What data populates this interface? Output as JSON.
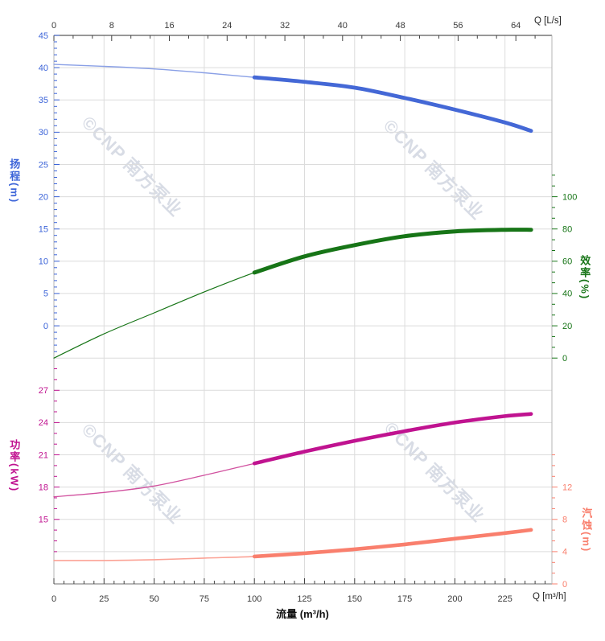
{
  "chart_data": {
    "type": "line",
    "title": "",
    "xlabel": "流量 (m³/h)",
    "watermark": "©CNP 南方泵业",
    "bold_from_flow": 100,
    "flow_max_m3h": 248,
    "axes": {
      "flow_top": {
        "unit_label": "Q [L/s]",
        "ticks": [
          0,
          8,
          16,
          24,
          32,
          40,
          48,
          56,
          64
        ],
        "m3h_per_unit": 3.6,
        "color": "#3a3a3a"
      },
      "flow_bottom": {
        "unit_label": "Q [m³/h]",
        "ticks": [
          0,
          25,
          50,
          75,
          100,
          125,
          150,
          175,
          200,
          225
        ],
        "minor_step": 5,
        "color": "#3a3a3a"
      },
      "head": {
        "title": "扬程(m)",
        "ticks": [
          45,
          40,
          35,
          30,
          25,
          20,
          15,
          10,
          5,
          0
        ],
        "range": [
          45,
          0
        ],
        "color": "#3c64d8"
      },
      "efficiency": {
        "title": "效率(%)",
        "ticks": [
          100,
          80,
          60,
          40,
          20,
          0
        ],
        "range": [
          100,
          0
        ],
        "color": "#177517"
      },
      "power": {
        "title": "功率(kW)",
        "ticks": [
          27,
          24,
          21,
          18,
          15
        ],
        "range": [
          27,
          15
        ],
        "color": "#c01390"
      },
      "npsh": {
        "title": "汽蚀(m)",
        "ticks": [
          12,
          8,
          4,
          0
        ],
        "range": [
          12,
          0
        ],
        "color": "#f97f6d"
      }
    },
    "series": [
      {
        "name": "扬程",
        "axis": "head",
        "color": "#4468d6",
        "thin_color": "#8aa0e6",
        "x": [
          0,
          25,
          50,
          75,
          100,
          125,
          150,
          175,
          200,
          225,
          238
        ],
        "y": [
          40.5,
          40.2,
          39.8,
          39.2,
          38.5,
          37.8,
          36.9,
          35.3,
          33.5,
          31.5,
          30.2
        ]
      },
      {
        "name": "效率",
        "axis": "efficiency",
        "color": "#177517",
        "thin_color": "#177517",
        "x": [
          0,
          25,
          50,
          75,
          100,
          125,
          150,
          175,
          200,
          225,
          238
        ],
        "y": [
          0,
          15,
          28,
          41,
          53,
          63,
          70,
          75.5,
          78.5,
          79.5,
          79.5
        ]
      },
      {
        "name": "功率",
        "axis": "power",
        "color": "#c01390",
        "thin_color": "#d1519f",
        "x": [
          0,
          25,
          50,
          75,
          100,
          125,
          150,
          175,
          200,
          225,
          238
        ],
        "y": [
          17.1,
          17.5,
          18.1,
          19.1,
          20.2,
          21.3,
          22.3,
          23.2,
          24.0,
          24.6,
          24.8
        ]
      },
      {
        "name": "汽蚀",
        "axis": "npsh",
        "color": "#f97f6d",
        "thin_color": "#fba295",
        "x": [
          0,
          25,
          50,
          75,
          100,
          125,
          150,
          175,
          200,
          225,
          238
        ],
        "y": [
          2.9,
          2.9,
          3.0,
          3.2,
          3.4,
          3.8,
          4.3,
          4.9,
          5.6,
          6.3,
          6.7
        ]
      }
    ],
    "style": {
      "grid_color": "#dcdcdc",
      "border_top": "#5a5a5a",
      "border_bottom": "#8a8a8a",
      "border_side": "#b5b5b5",
      "tick_dark": "#444444",
      "tick_label_color": "#333333"
    }
  }
}
